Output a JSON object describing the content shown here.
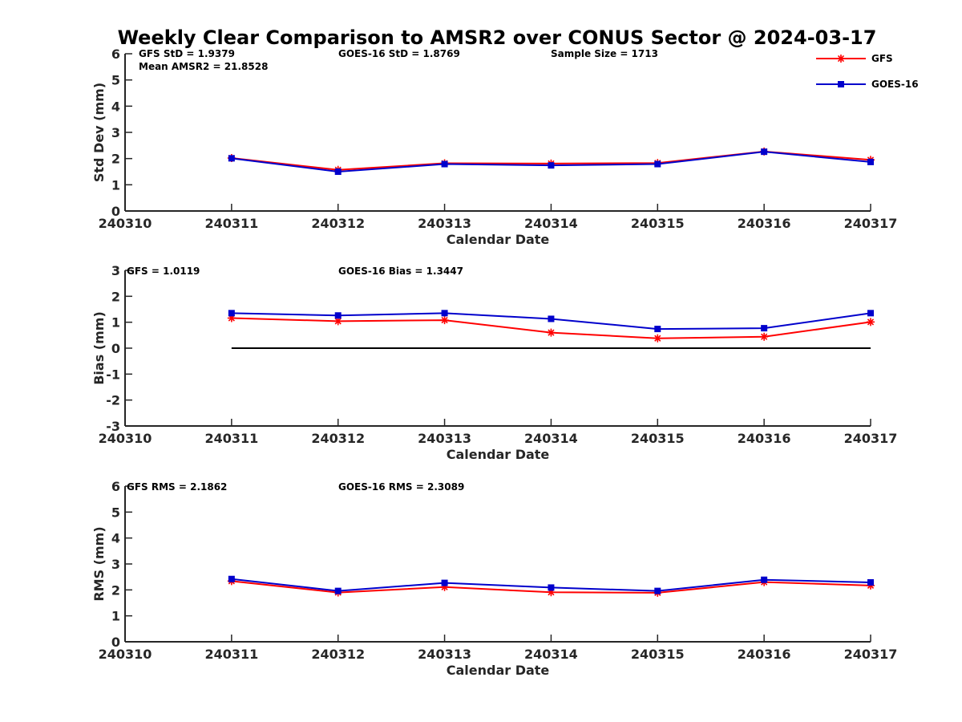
{
  "title": "Weekly Clear Comparison to AMSR2 over CONUS Sector @ 2024-03-17",
  "legend": [
    {
      "name": "GFS",
      "color": "#ff0000",
      "marker": "asterisk"
    },
    {
      "name": "GOES-16",
      "color": "#0000cc",
      "marker": "square"
    }
  ],
  "chart_data": [
    {
      "type": "line",
      "xlabel": "Calendar Date",
      "ylabel": "Std Dev (mm)",
      "xlim": [
        240310,
        240317
      ],
      "ylim": [
        0,
        6
      ],
      "x_ticks": [
        "240310",
        "240311",
        "240312",
        "240313",
        "240314",
        "240315",
        "240316",
        "240317"
      ],
      "y_ticks": [
        "0",
        "1",
        "2",
        "3",
        "4",
        "5",
        "6"
      ],
      "x": [
        240311,
        240312,
        240313,
        240314,
        240315,
        240316,
        240317
      ],
      "series": [
        {
          "name": "GFS",
          "color": "#ff0000",
          "values": [
            2.02,
            1.57,
            1.82,
            1.81,
            1.83,
            2.27,
            1.95
          ]
        },
        {
          "name": "GOES-16",
          "color": "#0000cc",
          "values": [
            2.01,
            1.5,
            1.79,
            1.74,
            1.79,
            2.26,
            1.87
          ]
        }
      ],
      "annotations": [
        "GFS StD = 1.9379",
        "Mean AMSR2 = 21.8528",
        "GOES-16 StD = 1.8769",
        "Sample Size = 1713"
      ]
    },
    {
      "type": "line",
      "xlabel": "Calendar Date",
      "ylabel": "Bias (mm)",
      "xlim": [
        240310,
        240317
      ],
      "ylim": [
        -3,
        3
      ],
      "x_ticks": [
        "240310",
        "240311",
        "240312",
        "240313",
        "240314",
        "240315",
        "240316",
        "240317"
      ],
      "y_ticks": [
        "-3",
        "-2",
        "-1",
        "0",
        "1",
        "2",
        "3"
      ],
      "x": [
        240311,
        240312,
        240313,
        240314,
        240315,
        240316,
        240317
      ],
      "series": [
        {
          "name": "GFS",
          "color": "#ff0000",
          "values": [
            1.16,
            1.04,
            1.08,
            0.6,
            0.38,
            0.44,
            1.01
          ]
        },
        {
          "name": "GOES-16",
          "color": "#0000cc",
          "values": [
            1.35,
            1.26,
            1.35,
            1.13,
            0.74,
            0.77,
            1.35
          ]
        }
      ],
      "reference_line": 0,
      "annotations": [
        "GFS = 1.0119",
        "GOES-16 Bias  = 1.3447"
      ]
    },
    {
      "type": "line",
      "xlabel": "Calendar Date",
      "ylabel": "RMS (mm)",
      "xlim": [
        240310,
        240317
      ],
      "ylim": [
        0,
        6
      ],
      "x_ticks": [
        "240310",
        "240311",
        "240312",
        "240313",
        "240314",
        "240315",
        "240316",
        "240317"
      ],
      "y_ticks": [
        "0",
        "1",
        "2",
        "3",
        "4",
        "5",
        "6"
      ],
      "x": [
        240311,
        240312,
        240313,
        240314,
        240315,
        240316,
        240317
      ],
      "series": [
        {
          "name": "GFS",
          "color": "#ff0000",
          "values": [
            2.34,
            1.9,
            2.11,
            1.91,
            1.89,
            2.3,
            2.17
          ]
        },
        {
          "name": "GOES-16",
          "color": "#0000cc",
          "values": [
            2.42,
            1.96,
            2.27,
            2.09,
            1.96,
            2.39,
            2.29
          ]
        }
      ],
      "annotations": [
        "GFS RMS = 2.1862",
        "GOES-16 RMS = 2.3089"
      ]
    }
  ]
}
